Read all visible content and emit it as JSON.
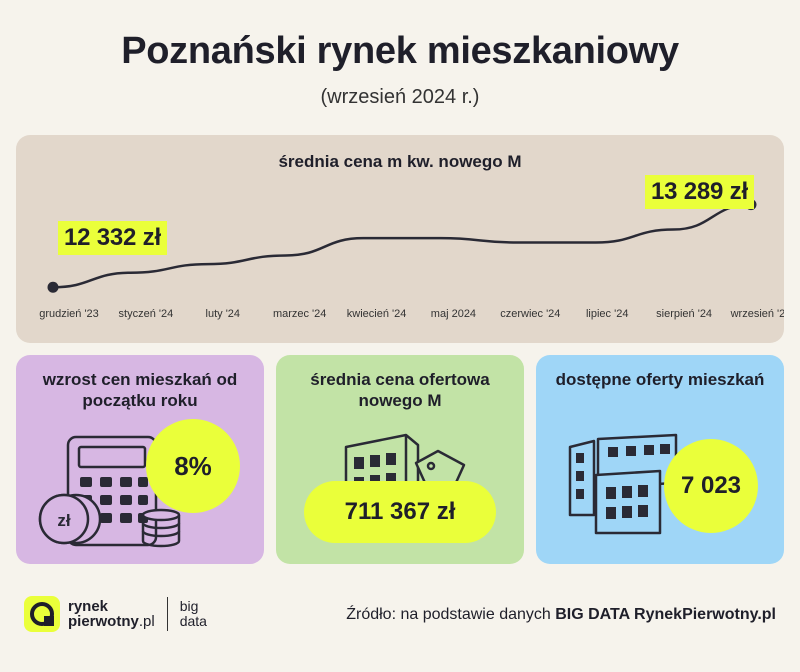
{
  "header": {
    "title": "Poznański rynek mieszkaniowy",
    "subtitle": "(wrzesień 2024 r.)"
  },
  "chart_data": {
    "type": "line",
    "title": "średnia cena m kw. nowego M",
    "categories": [
      "grudzień '23",
      "styczeń '24",
      "luty '24",
      "marzec '24",
      "kwiecień '24",
      "maj 2024",
      "czerwiec '24",
      "lipiec '24",
      "sierpień '24",
      "wrzesień '24"
    ],
    "series": [
      {
        "values": [
          12332,
          12500,
          12600,
          12700,
          12900,
          12900,
          12850,
          12850,
          13000,
          13289
        ]
      }
    ],
    "ylim": [
      12300,
      13400
    ],
    "grid": false,
    "annotations": {
      "start": "12 332 zł",
      "end": "13 289 zł"
    },
    "line_color": "#2a2a35"
  },
  "cards": [
    {
      "title": "wzrost cen mieszkań od początku roku",
      "value": "8%",
      "icon": "calculator-coins-icon",
      "coin_label": "zł"
    },
    {
      "title": "średnia cena ofertowa nowego M",
      "value": "711 367 zł",
      "icon": "building-price-tag-icon"
    },
    {
      "title": "dostępne oferty mieszkań",
      "value": "7 023",
      "icon": "apartment-blocks-icon"
    }
  ],
  "footer": {
    "logo_line1": "rynek",
    "logo_line2": "pierwotny",
    "logo_suffix": ".pl",
    "logo_big1": "big",
    "logo_big2": "data",
    "source_prefix": "Źródło: na podstawie danych ",
    "source_bold": "BIG DATA RynekPierwotny.pl"
  },
  "colors": {
    "accent": "#eaff3a",
    "purple": "#d7b7e3",
    "green": "#c2e3a6",
    "blue": "#9fd6f7",
    "chart_bg": "#e2d7cb"
  }
}
